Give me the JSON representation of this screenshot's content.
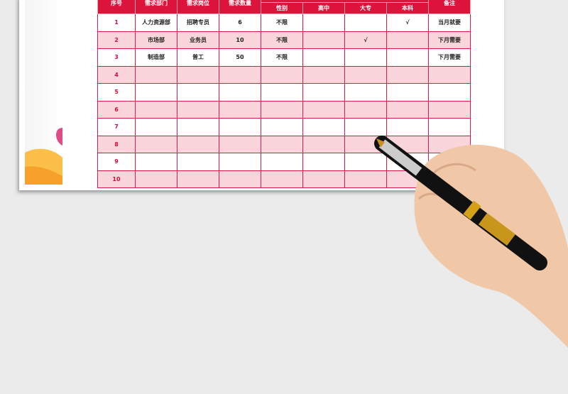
{
  "table": {
    "headers": [
      "序号",
      "需求部门",
      "需求岗位",
      "需求数量",
      "",
      "备注"
    ],
    "subheaders": [
      "性别",
      "高中",
      "大专",
      "本科"
    ],
    "rows": [
      [
        "1",
        "人力资源部",
        "招聘专员",
        "6",
        "不限",
        "",
        "",
        "√",
        "当月就要"
      ],
      [
        "2",
        "市场部",
        "业务员",
        "10",
        "不限",
        "",
        "√",
        "",
        "下月需要"
      ],
      [
        "3",
        "制造部",
        "普工",
        "50",
        "不限",
        "",
        "",
        "",
        "下月需要"
      ],
      [
        "4",
        "",
        "",
        "",
        "",
        "",
        "",
        "",
        ""
      ],
      [
        "5",
        "",
        "",
        "",
        "",
        "",
        "",
        "",
        ""
      ],
      [
        "6",
        "",
        "",
        "",
        "",
        "",
        "",
        "",
        ""
      ],
      [
        "7",
        "",
        "",
        "",
        "",
        "",
        "",
        "",
        ""
      ],
      [
        "8",
        "",
        "",
        "",
        "",
        "",
        "",
        "",
        ""
      ],
      [
        "9",
        "",
        "",
        "",
        "",
        "",
        "",
        "",
        ""
      ],
      [
        "10",
        "",
        "",
        "",
        "",
        "",
        "",
        "",
        ""
      ]
    ]
  },
  "colors": {
    "header": "#dc143c",
    "stripe": "#fbd5dc",
    "index": "#d0103a",
    "background": "#ebebeb"
  },
  "icons": [
    "hand-holding-fountain-pen"
  ]
}
